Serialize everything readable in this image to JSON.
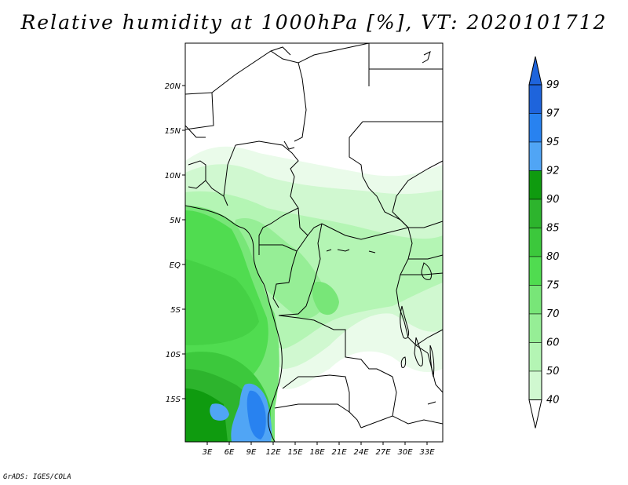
{
  "title": "Relative humidity at 1000hPa [%], VT: 2020101712",
  "credit": "GrADS: IGES/COLA",
  "map": {
    "lat_labels": [
      "20N",
      "15N",
      "10N",
      "5N",
      "EQ",
      "5S",
      "10S",
      "15S"
    ],
    "lon_labels": [
      "3E",
      "6E",
      "9E",
      "12E",
      "15E",
      "18E",
      "21E",
      "24E",
      "27E",
      "30E",
      "33E"
    ]
  },
  "colorbar": {
    "levels": [
      "99",
      "97",
      "95",
      "92",
      "90",
      "85",
      "80",
      "75",
      "70",
      "60",
      "50",
      "40"
    ],
    "colors": [
      "#1e64dc",
      "#2882f0",
      "#50a5f5",
      "#0f9b0f",
      "#2db42d",
      "#3cc83c",
      "#50dc50",
      "#78e678",
      "#96ee96",
      "#b4f5b4",
      "#d0f8d0",
      "#eafbea"
    ],
    "top_color": "#1e64dc",
    "bottom_color": "#ffffff"
  }
}
